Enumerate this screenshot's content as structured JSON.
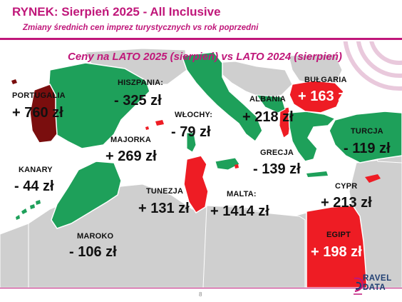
{
  "header": {
    "title": "RYNEK: Sierpień 2025 - All Inclusive",
    "subtitle": "Zmiany średnich cen imprez turystycznych vs rok poprzedni"
  },
  "map": {
    "title": "Ceny na LATO 2025 (sierpień) vs  LATO 2024 (sierpień)",
    "colors": {
      "decrease": "#1ea05a",
      "increase": "#ee1c24",
      "strong_increase": "#7a0e0e",
      "land": "#cfcfcf",
      "sea": "#ffffff",
      "accent": "#c0177a"
    },
    "legend_semantics": {
      "green": "price decrease",
      "red": "price increase",
      "dark-red": "largest increase"
    },
    "destinations": [
      {
        "id": "portugalia",
        "name": "PORTUGALIA",
        "change": "+ 760 zł",
        "trend": "increase"
      },
      {
        "id": "hiszpania",
        "name": "HISZPANIA:",
        "change": "- 325 zł",
        "trend": "decrease"
      },
      {
        "id": "majorka",
        "name": "MAJORKA",
        "change": "+ 269 zł",
        "trend": "increase"
      },
      {
        "id": "kanary",
        "name": "KANARY",
        "change": "- 44 zł",
        "trend": "decrease"
      },
      {
        "id": "wlochy",
        "name": "WŁOCHY:",
        "change": "- 79 zł",
        "trend": "decrease"
      },
      {
        "id": "albania",
        "name": "ALBANIA",
        "change": "+ 218 zł",
        "trend": "increase"
      },
      {
        "id": "bulgaria",
        "name": "BUŁGARIA",
        "change": "+ 163 zł",
        "trend": "increase"
      },
      {
        "id": "turcja",
        "name": "TURCJA",
        "change": "- 119 zł",
        "trend": "decrease"
      },
      {
        "id": "grecja",
        "name": "GRECJA",
        "change": "- 139 zł",
        "trend": "decrease"
      },
      {
        "id": "cypr",
        "name": "CYPR",
        "change": "+ 213 zł",
        "trend": "increase"
      },
      {
        "id": "tunezja",
        "name": "TUNEZJA",
        "change": "+ 131 zł",
        "trend": "increase"
      },
      {
        "id": "malta",
        "name": "MALTA:",
        "change": "+ 1414 zł",
        "trend": "increase"
      },
      {
        "id": "maroko",
        "name": "MAROKO",
        "change": "- 106 zł",
        "trend": "decrease"
      },
      {
        "id": "egipt",
        "name": "EGIPT",
        "change": "+ 198 zł",
        "trend": "increase"
      }
    ]
  },
  "footer": {
    "page_number": "8",
    "logo_text_top": "RAVEL",
    "logo_text_bottom": "DATA"
  }
}
